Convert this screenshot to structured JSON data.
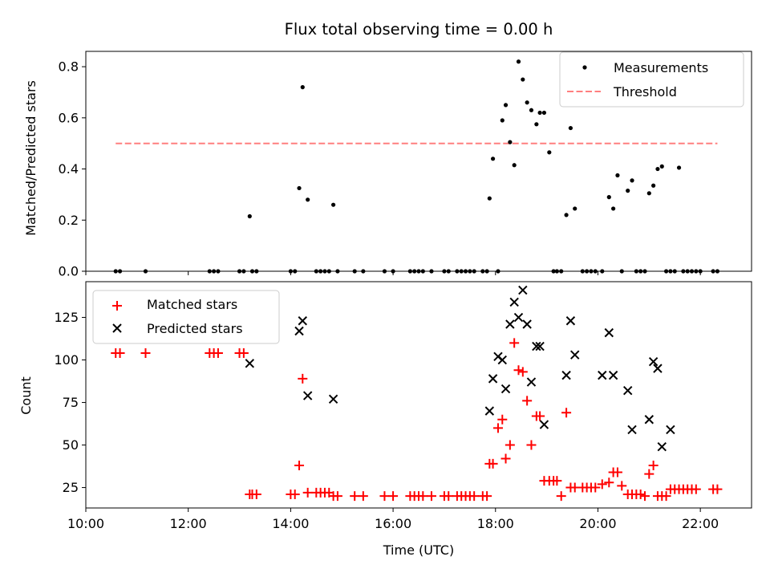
{
  "chart_data": [
    {
      "type": "scatter",
      "title": "Flux total observing time = 0.00 h",
      "xlabel": "",
      "ylabel": "Matched/Predicted stars",
      "xlim": [
        "10:00",
        "23:00"
      ],
      "ylim": [
        0,
        0.86
      ],
      "yticks": [
        "0.0",
        "0.2",
        "0.4",
        "0.6",
        "0.8"
      ],
      "grid": false,
      "legend_position": "top-right",
      "legend": [
        "Measurements",
        "Threshold"
      ],
      "threshold": {
        "value": 0.5,
        "x_start": "10:35",
        "x_end": "22:20",
        "color": "#ff7f7f",
        "style": "dashed"
      },
      "series": [
        {
          "name": "Measurements",
          "marker": "dot",
          "color": "#000000",
          "points": [
            [
              "10:35",
              0
            ],
            [
              "10:40",
              0
            ],
            [
              "11:10",
              0
            ],
            [
              "12:25",
              0
            ],
            [
              "12:30",
              0
            ],
            [
              "12:35",
              0
            ],
            [
              "13:00",
              0
            ],
            [
              "13:05",
              0
            ],
            [
              "13:12",
              0.215
            ],
            [
              "13:15",
              0
            ],
            [
              "13:20",
              0
            ],
            [
              "14:00",
              0
            ],
            [
              "14:05",
              0
            ],
            [
              "14:10",
              0.325
            ],
            [
              "14:14",
              0.72
            ],
            [
              "14:20",
              0.28
            ],
            [
              "14:30",
              0
            ],
            [
              "14:35",
              0
            ],
            [
              "14:40",
              0
            ],
            [
              "14:45",
              0
            ],
            [
              "14:50",
              0.26
            ],
            [
              "14:55",
              0
            ],
            [
              "15:15",
              0
            ],
            [
              "15:25",
              0
            ],
            [
              "15:50",
              0
            ],
            [
              "16:00",
              0
            ],
            [
              "16:20",
              0
            ],
            [
              "16:25",
              0
            ],
            [
              "16:30",
              0
            ],
            [
              "16:35",
              0
            ],
            [
              "16:45",
              0
            ],
            [
              "17:00",
              0
            ],
            [
              "17:05",
              0
            ],
            [
              "17:15",
              0
            ],
            [
              "17:20",
              0
            ],
            [
              "17:25",
              0
            ],
            [
              "17:30",
              0
            ],
            [
              "17:35",
              0
            ],
            [
              "17:45",
              0
            ],
            [
              "17:50",
              0
            ],
            [
              "17:53",
              0.285
            ],
            [
              "17:57",
              0.44
            ],
            [
              "18:03",
              0
            ],
            [
              "18:08",
              0.59
            ],
            [
              "18:12",
              0.65
            ],
            [
              "18:17",
              0.505
            ],
            [
              "18:22",
              0.415
            ],
            [
              "18:27",
              0.82
            ],
            [
              "18:32",
              0.75
            ],
            [
              "18:37",
              0.66
            ],
            [
              "18:42",
              0.63
            ],
            [
              "18:48",
              0.575
            ],
            [
              "18:52",
              0.62
            ],
            [
              "18:57",
              0.62
            ],
            [
              "19:03",
              0.465
            ],
            [
              "19:08",
              0
            ],
            [
              "19:12",
              0
            ],
            [
              "19:17",
              0
            ],
            [
              "19:23",
              0.22
            ],
            [
              "19:28",
              0.56
            ],
            [
              "19:33",
              0.245
            ],
            [
              "19:42",
              0
            ],
            [
              "19:47",
              0
            ],
            [
              "19:52",
              0
            ],
            [
              "19:57",
              0
            ],
            [
              "20:05",
              0
            ],
            [
              "20:13",
              0.29
            ],
            [
              "20:18",
              0.245
            ],
            [
              "20:23",
              0.375
            ],
            [
              "20:28",
              0
            ],
            [
              "20:35",
              0.315
            ],
            [
              "20:40",
              0.355
            ],
            [
              "20:45",
              0
            ],
            [
              "20:50",
              0
            ],
            [
              "20:55",
              0
            ],
            [
              "21:00",
              0.305
            ],
            [
              "21:05",
              0.335
            ],
            [
              "21:10",
              0.4
            ],
            [
              "21:15",
              0.41
            ],
            [
              "21:20",
              0
            ],
            [
              "21:25",
              0
            ],
            [
              "21:30",
              0
            ],
            [
              "21:35",
              0.405
            ],
            [
              "21:40",
              0
            ],
            [
              "21:45",
              0
            ],
            [
              "21:50",
              0
            ],
            [
              "21:55",
              0
            ],
            [
              "22:00",
              0
            ],
            [
              "22:15",
              0
            ],
            [
              "22:20",
              0
            ]
          ]
        }
      ]
    },
    {
      "type": "scatter",
      "title": "",
      "xlabel": "Time (UTC)",
      "ylabel": "Count",
      "xlim": [
        "10:00",
        "23:00"
      ],
      "ylim": [
        13,
        146
      ],
      "xticks": [
        "10:00",
        "12:00",
        "14:00",
        "16:00",
        "18:00",
        "20:00",
        "22:00"
      ],
      "yticks": [
        "25",
        "50",
        "75",
        "100",
        "125"
      ],
      "grid": false,
      "legend_position": "top-left",
      "legend": [
        "Matched stars",
        "Predicted stars"
      ],
      "series": [
        {
          "name": "Matched stars",
          "marker": "plus",
          "color": "#ff0000",
          "points": [
            [
              "10:35",
              104
            ],
            [
              "10:40",
              104
            ],
            [
              "11:10",
              104
            ],
            [
              "12:25",
              104
            ],
            [
              "12:30",
              104
            ],
            [
              "12:35",
              104
            ],
            [
              "13:00",
              104
            ],
            [
              "13:05",
              104
            ],
            [
              "13:12",
              21
            ],
            [
              "13:15",
              21
            ],
            [
              "13:20",
              21
            ],
            [
              "14:00",
              21
            ],
            [
              "14:05",
              21
            ],
            [
              "14:10",
              38
            ],
            [
              "14:14",
              89
            ],
            [
              "14:20",
              22
            ],
            [
              "14:30",
              22
            ],
            [
              "14:35",
              22
            ],
            [
              "14:40",
              22
            ],
            [
              "14:45",
              22
            ],
            [
              "14:50",
              20
            ],
            [
              "14:55",
              20
            ],
            [
              "15:15",
              20
            ],
            [
              "15:25",
              20
            ],
            [
              "15:50",
              20
            ],
            [
              "16:00",
              20
            ],
            [
              "16:20",
              20
            ],
            [
              "16:25",
              20
            ],
            [
              "16:30",
              20
            ],
            [
              "16:35",
              20
            ],
            [
              "16:45",
              20
            ],
            [
              "17:00",
              20
            ],
            [
              "17:05",
              20
            ],
            [
              "17:15",
              20
            ],
            [
              "17:20",
              20
            ],
            [
              "17:25",
              20
            ],
            [
              "17:30",
              20
            ],
            [
              "17:35",
              20
            ],
            [
              "17:45",
              20
            ],
            [
              "17:50",
              20
            ],
            [
              "17:53",
              39
            ],
            [
              "17:57",
              39
            ],
            [
              "18:03",
              60
            ],
            [
              "18:08",
              65
            ],
            [
              "18:12",
              42
            ],
            [
              "18:17",
              50
            ],
            [
              "18:22",
              110
            ],
            [
              "18:27",
              94
            ],
            [
              "18:32",
              93
            ],
            [
              "18:37",
              76
            ],
            [
              "18:42",
              50
            ],
            [
              "18:48",
              67
            ],
            [
              "18:52",
              67
            ],
            [
              "18:57",
              29
            ],
            [
              "19:03",
              29
            ],
            [
              "19:08",
              29
            ],
            [
              "19:12",
              29
            ],
            [
              "19:17",
              20
            ],
            [
              "19:23",
              69
            ],
            [
              "19:28",
              25
            ],
            [
              "19:33",
              25
            ],
            [
              "19:42",
              25
            ],
            [
              "19:47",
              25
            ],
            [
              "19:52",
              25
            ],
            [
              "19:57",
              25
            ],
            [
              "20:05",
              27
            ],
            [
              "20:13",
              28
            ],
            [
              "20:18",
              34
            ],
            [
              "20:23",
              34
            ],
            [
              "20:28",
              26
            ],
            [
              "20:35",
              21
            ],
            [
              "20:40",
              21
            ],
            [
              "20:45",
              21
            ],
            [
              "20:50",
              21
            ],
            [
              "20:55",
              20
            ],
            [
              "21:00",
              33
            ],
            [
              "21:05",
              38
            ],
            [
              "21:10",
              20
            ],
            [
              "21:15",
              20
            ],
            [
              "21:20",
              20
            ],
            [
              "21:25",
              24
            ],
            [
              "21:30",
              24
            ],
            [
              "21:35",
              24
            ],
            [
              "21:40",
              24
            ],
            [
              "21:45",
              24
            ],
            [
              "21:50",
              24
            ],
            [
              "21:55",
              24
            ],
            [
              "22:15",
              24
            ],
            [
              "22:20",
              24
            ]
          ]
        },
        {
          "name": "Predicted stars",
          "marker": "x",
          "color": "#000000",
          "points": [
            [
              "13:12",
              98
            ],
            [
              "14:10",
              117
            ],
            [
              "14:14",
              123
            ],
            [
              "14:20",
              79
            ],
            [
              "14:50",
              77
            ],
            [
              "17:53",
              70
            ],
            [
              "17:57",
              89
            ],
            [
              "18:03",
              102
            ],
            [
              "18:08",
              100
            ],
            [
              "18:12",
              83
            ],
            [
              "18:17",
              121
            ],
            [
              "18:22",
              134
            ],
            [
              "18:27",
              125
            ],
            [
              "18:32",
              141
            ],
            [
              "18:37",
              121
            ],
            [
              "18:42",
              87
            ],
            [
              "18:48",
              108
            ],
            [
              "18:52",
              108
            ],
            [
              "18:57",
              62
            ],
            [
              "19:23",
              91
            ],
            [
              "19:28",
              123
            ],
            [
              "19:33",
              103
            ],
            [
              "20:05",
              91
            ],
            [
              "20:13",
              116
            ],
            [
              "20:18",
              91
            ],
            [
              "20:35",
              82
            ],
            [
              "20:40",
              59
            ],
            [
              "21:00",
              65
            ],
            [
              "21:05",
              99
            ],
            [
              "21:10",
              95
            ],
            [
              "21:15",
              49
            ],
            [
              "21:25",
              59
            ]
          ]
        }
      ]
    }
  ]
}
